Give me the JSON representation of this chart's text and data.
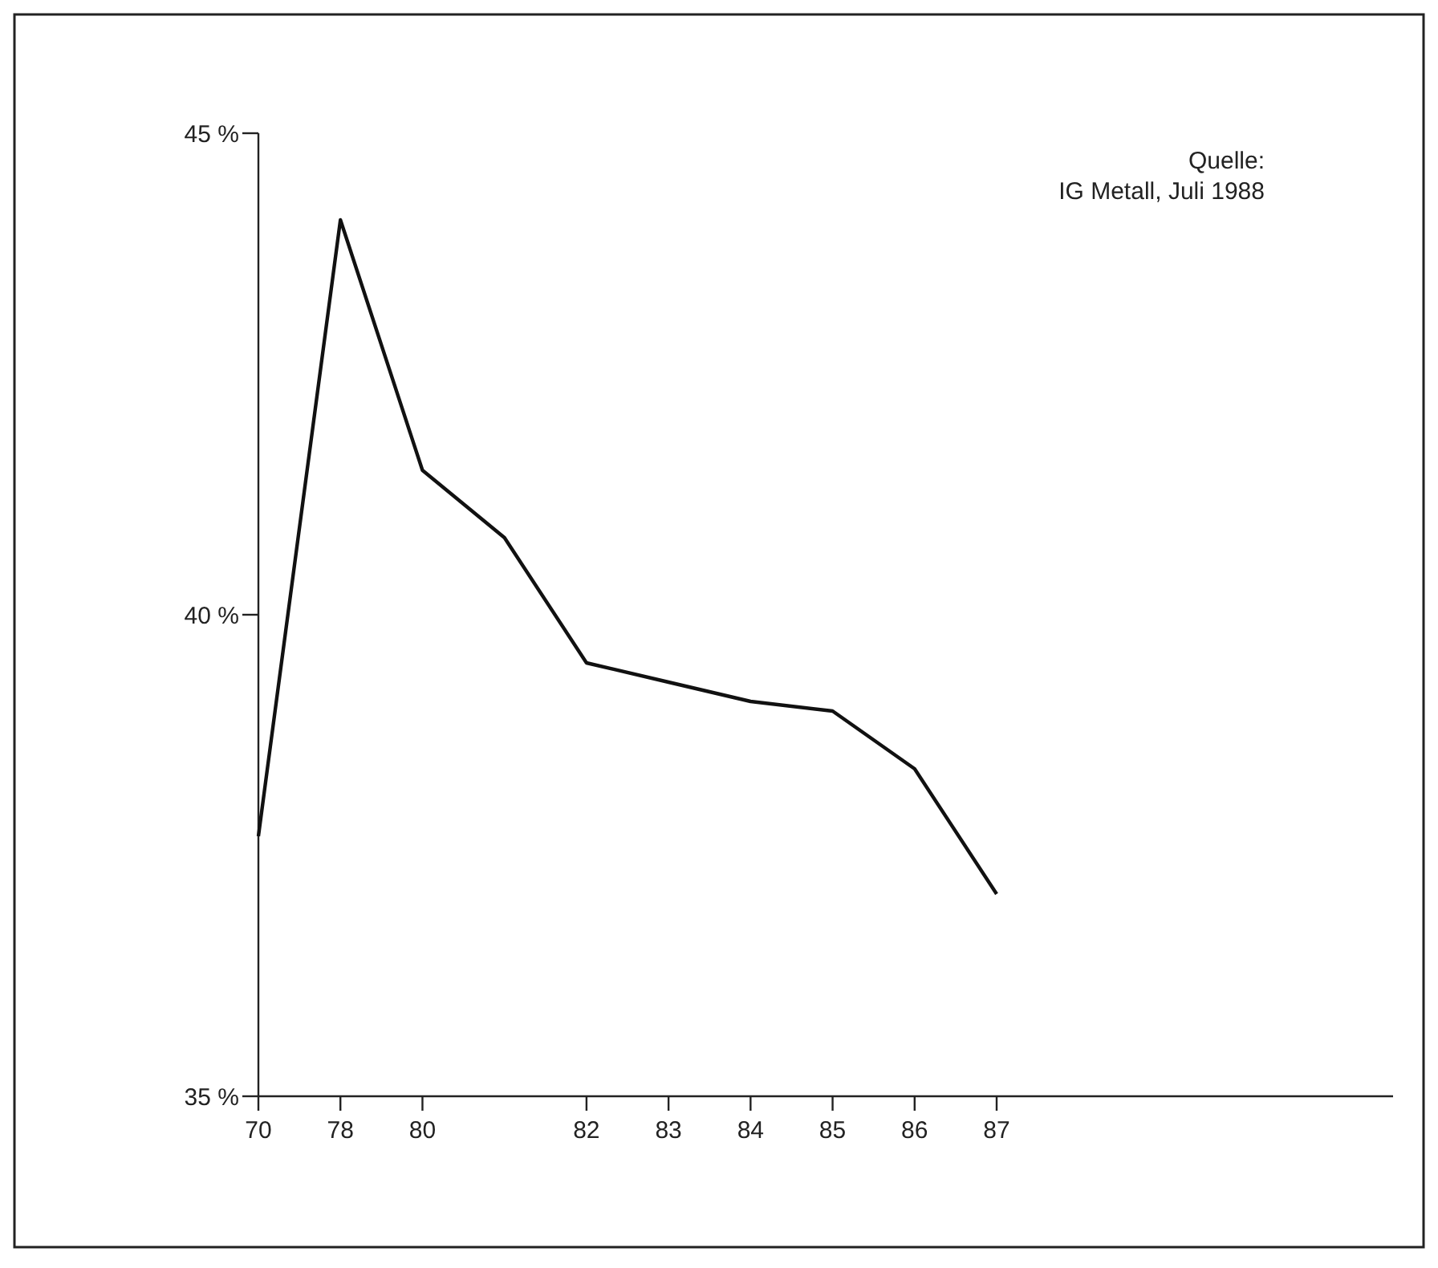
{
  "chart_data": {
    "type": "line",
    "categories": [
      "70",
      "78",
      "80",
      null,
      "82",
      "83",
      "84",
      "85",
      "86",
      "87"
    ],
    "series": [
      {
        "color": "#111111",
        "values": [
          37.7,
          44.1,
          41.5,
          40.8,
          39.5,
          39.3,
          39.1,
          39.0,
          38.4,
          37.1
        ]
      }
    ],
    "ylim": [
      35,
      45
    ],
    "yticks": [
      {
        "value": 35,
        "label": "35 %"
      },
      {
        "value": 40,
        "label": "40 %"
      },
      {
        "value": 45,
        "label": "45 %"
      }
    ],
    "grid": false,
    "marker": "none",
    "line_style": "solid",
    "annotations": [
      "Quelle:\nIG Metall, Juli 1988"
    ]
  }
}
